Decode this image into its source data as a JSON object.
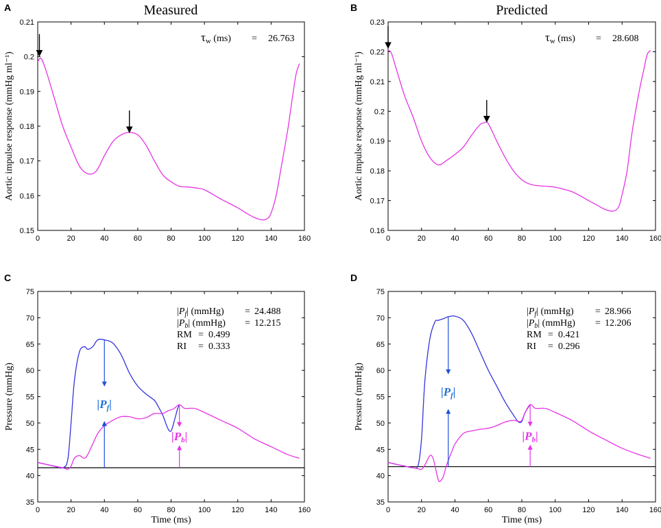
{
  "chart_data": [
    {
      "id": "A",
      "panel_label": "A",
      "type": "line",
      "title": "Measured",
      "ylabel": "Aortic impulse response (mmHg ml⁻¹)",
      "xlabel": "",
      "xlim": [
        0,
        160
      ],
      "ylim": [
        0.15,
        0.21
      ],
      "xticks": [
        0,
        20,
        40,
        60,
        80,
        100,
        120,
        140,
        160
      ],
      "yticks": [
        0.15,
        0.16,
        0.17,
        0.18,
        0.19,
        0.2,
        0.21
      ],
      "ytick_labels": [
        "0.15",
        "0.16",
        "0.17",
        "0.18",
        "0.19",
        "0.2",
        "0.21"
      ],
      "series": [
        {
          "name": "impulse response",
          "color": "#e633e6",
          "x": [
            0,
            2,
            5,
            10,
            15,
            20,
            25,
            30,
            35,
            40,
            45,
            50,
            55,
            60,
            65,
            70,
            75,
            80,
            85,
            90,
            95,
            100,
            110,
            120,
            125,
            130,
            135,
            138,
            140,
            143,
            146,
            150,
            153,
            155,
            157
          ],
          "y": [
            0.1985,
            0.1995,
            0.196,
            0.188,
            0.18,
            0.174,
            0.1685,
            0.1663,
            0.167,
            0.1715,
            0.1755,
            0.1775,
            0.1782,
            0.1775,
            0.1745,
            0.17,
            0.166,
            0.164,
            0.1627,
            0.1625,
            0.1622,
            0.1617,
            0.159,
            0.1565,
            0.155,
            0.1537,
            0.153,
            0.1535,
            0.155,
            0.16,
            0.168,
            0.179,
            0.189,
            0.195,
            0.198
          ]
        }
      ],
      "arrows": [
        {
          "x": 1,
          "y": 0.2,
          "color": "#000000"
        },
        {
          "x": 55,
          "y": 0.178,
          "color": "#000000"
        }
      ],
      "annotation": {
        "label": "τw (ms)",
        "tau": "τ",
        "sub": "w",
        "unit": "(ms)",
        "eq": "=",
        "value": "26.763"
      }
    },
    {
      "id": "B",
      "panel_label": "B",
      "type": "line",
      "title": "Predicted",
      "ylabel": "Aortic impulse response (mmHg ml⁻¹)",
      "xlabel": "",
      "xlim": [
        0,
        160
      ],
      "ylim": [
        0.16,
        0.23
      ],
      "xticks": [
        0,
        20,
        40,
        60,
        80,
        100,
        120,
        140,
        160
      ],
      "yticks": [
        0.16,
        0.17,
        0.18,
        0.19,
        0.2,
        0.21,
        0.22,
        0.23
      ],
      "ytick_labels": [
        "0.16",
        "0.17",
        "0.18",
        "0.19",
        "0.2",
        "0.21",
        "0.22",
        "0.23"
      ],
      "series": [
        {
          "name": "impulse response",
          "color": "#e633e6",
          "x": [
            0,
            2,
            5,
            10,
            15,
            20,
            25,
            30,
            35,
            40,
            45,
            50,
            55,
            58,
            60,
            65,
            70,
            75,
            80,
            85,
            90,
            95,
            100,
            110,
            120,
            125,
            130,
            135,
            138,
            140,
            143,
            146,
            150,
            153,
            155,
            157
          ],
          "y": [
            0.2205,
            0.2195,
            0.214,
            0.205,
            0.198,
            0.19,
            0.1845,
            0.182,
            0.1835,
            0.1855,
            0.188,
            0.192,
            0.1955,
            0.1962,
            0.1958,
            0.19,
            0.1845,
            0.18,
            0.177,
            0.1755,
            0.175,
            0.1748,
            0.1745,
            0.173,
            0.17,
            0.1685,
            0.167,
            0.1665,
            0.168,
            0.172,
            0.18,
            0.193,
            0.206,
            0.214,
            0.219,
            0.2205
          ]
        }
      ],
      "arrows": [
        {
          "x": 0,
          "y": 0.221,
          "color": "#000000"
        },
        {
          "x": 59,
          "y": 0.1962,
          "color": "#000000"
        }
      ],
      "annotation": {
        "label": "τw (ms)",
        "tau": "τ",
        "sub": "w",
        "unit": "(ms)",
        "eq": "=",
        "value": "28.608"
      }
    },
    {
      "id": "C",
      "panel_label": "C",
      "type": "line",
      "title": "",
      "ylabel": "Pressure (mmHg)",
      "xlabel": "Time (ms)",
      "xlim": [
        0,
        160
      ],
      "ylim": [
        35,
        75
      ],
      "xticks": [
        0,
        20,
        40,
        60,
        80,
        100,
        120,
        140,
        160
      ],
      "yticks": [
        35,
        40,
        45,
        50,
        55,
        60,
        65,
        70,
        75
      ],
      "ytick_labels": [
        "35",
        "40",
        "45",
        "50",
        "55",
        "60",
        "65",
        "70",
        "75"
      ],
      "baseline": 41.5,
      "series": [
        {
          "name": "Pf (forward)",
          "color": "#3333dd",
          "x": [
            0,
            10,
            15,
            18,
            20,
            22,
            25,
            28,
            30,
            33,
            36,
            40,
            45,
            50,
            55,
            60,
            65,
            70,
            72,
            75,
            78,
            80,
            82,
            84,
            85
          ],
          "y": [
            42.5,
            41.8,
            41.5,
            43,
            50,
            58,
            63.5,
            64.5,
            64,
            64.5,
            65.8,
            65.8,
            65.2,
            63,
            59.5,
            57,
            55.5,
            54.3,
            53.3,
            51.5,
            49,
            48.5,
            50.5,
            52.8,
            53.5
          ]
        },
        {
          "name": "Pb (backward)",
          "color": "#e633e6",
          "x": [
            0,
            10,
            15,
            18,
            20,
            22,
            25,
            28,
            30,
            33,
            36,
            40,
            45,
            50,
            55,
            60,
            65,
            70,
            75,
            78,
            80,
            82,
            85,
            88,
            92,
            95,
            100,
            110,
            120,
            130,
            140,
            150,
            157
          ],
          "y": [
            42.5,
            41.8,
            41.5,
            41.2,
            41.8,
            43.3,
            43.8,
            43.3,
            44,
            46,
            48,
            49.5,
            50.5,
            51.2,
            51.2,
            50.8,
            51,
            51.8,
            51.8,
            52.3,
            52.5,
            52.8,
            53.5,
            52.8,
            52.8,
            52.7,
            52,
            50.5,
            49,
            47,
            45.5,
            44,
            43.3
          ]
        }
      ],
      "markers": [
        {
          "name": "Pf",
          "x": 40,
          "y_bottom": 41.5,
          "y_top": 65.8,
          "label": "|Pf|",
          "bar": "|",
          "sym": "P",
          "sub": "f",
          "color": "#1f6fd6",
          "line_color": "#3333dd"
        },
        {
          "name": "Pb",
          "x": 85,
          "y_bottom": 41.5,
          "y_top": 53.5,
          "label": "|Pb|",
          "bar": "|",
          "sym": "P",
          "sub": "b",
          "color": "#e633e6",
          "line_color": "#e633e6"
        }
      ],
      "stats": [
        {
          "bar": "|",
          "sym": "P",
          "sub": "f",
          "unit": "| (mmHg)",
          "eq": "=",
          "value": "24.488"
        },
        {
          "bar": "|",
          "sym": "P",
          "sub": "b",
          "unit": "| (mmHg)",
          "eq": "=",
          "value": "12.215"
        },
        {
          "bar": "",
          "sym": "RM",
          "sub": "",
          "unit": "",
          "eq": "=",
          "value": "0.499"
        },
        {
          "bar": "",
          "sym": "RI",
          "sub": "",
          "unit": "",
          "eq": "=",
          "value": "0.333"
        }
      ]
    },
    {
      "id": "D",
      "panel_label": "D",
      "type": "line",
      "title": "",
      "ylabel": "Pressure (mmHg)",
      "xlabel": "Time (ms)",
      "xlim": [
        0,
        160
      ],
      "ylim": [
        35,
        75
      ],
      "xticks": [
        0,
        20,
        40,
        60,
        80,
        100,
        120,
        140,
        160
      ],
      "yticks": [
        35,
        40,
        45,
        50,
        55,
        60,
        65,
        70,
        75
      ],
      "ytick_labels": [
        "35",
        "40",
        "45",
        "50",
        "55",
        "60",
        "65",
        "70",
        "75"
      ],
      "baseline": 41.7,
      "series": [
        {
          "name": "Pf (forward)",
          "color": "#3333dd",
          "x": [
            0,
            10,
            15,
            18,
            20,
            22,
            25,
            28,
            30,
            33,
            36,
            40,
            45,
            50,
            55,
            60,
            65,
            70,
            75,
            78,
            80,
            82,
            85
          ],
          "y": [
            42.5,
            41.8,
            41.5,
            42,
            47,
            58,
            66,
            69.2,
            69.5,
            69.8,
            70.2,
            70.3,
            69.5,
            67,
            63.5,
            60,
            57,
            54,
            51.5,
            50.2,
            50.3,
            52,
            53.5
          ]
        },
        {
          "name": "Pb (backward)",
          "color": "#e633e6",
          "x": [
            0,
            10,
            15,
            18,
            20,
            22,
            25,
            27,
            29,
            30,
            31,
            33,
            35,
            38,
            40,
            45,
            50,
            55,
            60,
            65,
            70,
            75,
            78,
            80,
            82,
            85,
            88,
            92,
            95,
            100,
            110,
            120,
            130,
            140,
            150,
            157
          ],
          "y": [
            42.5,
            41.8,
            41.5,
            41.3,
            41.2,
            42,
            43.8,
            43.2,
            40.5,
            39.2,
            38.9,
            39.8,
            42,
            44.5,
            46,
            48,
            48.5,
            48.8,
            49,
            49.5,
            50.2,
            50.5,
            50.3,
            50.5,
            52,
            53.5,
            52.8,
            52.8,
            52.7,
            52,
            50.5,
            48.5,
            46.8,
            45.2,
            44,
            43.3
          ]
        }
      ],
      "markers": [
        {
          "name": "Pf",
          "x": 36,
          "y_bottom": 41.7,
          "y_top": 70.2,
          "label": "|Pf|",
          "bar": "|",
          "sym": "P",
          "sub": "f",
          "color": "#1f6fd6",
          "line_color": "#3333dd"
        },
        {
          "name": "Pb",
          "x": 85,
          "y_bottom": 41.7,
          "y_top": 53.5,
          "label": "|Pb|",
          "bar": "|",
          "sym": "P",
          "sub": "b",
          "color": "#e633e6",
          "line_color": "#e633e6"
        }
      ],
      "stats": [
        {
          "bar": "|",
          "sym": "P",
          "sub": "f",
          "unit": "| (mmHg)",
          "eq": "=",
          "value": "28.966"
        },
        {
          "bar": "|",
          "sym": "P",
          "sub": "b",
          "unit": "| (mmHg)",
          "eq": "=",
          "value": "12.206"
        },
        {
          "bar": "",
          "sym": "RM",
          "sub": "",
          "unit": "",
          "eq": "=",
          "value": "0.421"
        },
        {
          "bar": "",
          "sym": "RI",
          "sub": "",
          "unit": "",
          "eq": "=",
          "value": "0.296"
        }
      ]
    }
  ]
}
